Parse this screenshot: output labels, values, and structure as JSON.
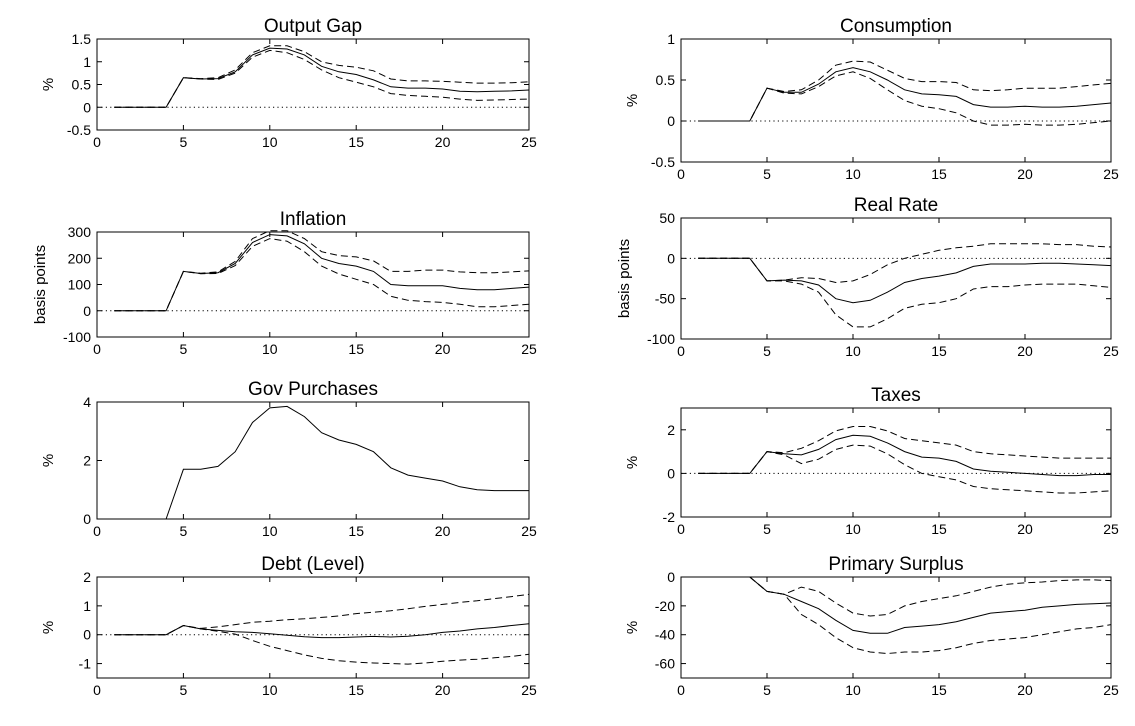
{
  "chart_data": [
    {
      "type": "line",
      "title": "Output Gap",
      "ylabel": "%",
      "xlim": [
        0,
        25
      ],
      "ylim": [
        -0.5,
        1.5
      ],
      "xticks": [
        0,
        5,
        10,
        15,
        20,
        25
      ],
      "yticks": [
        -0.5,
        0,
        0.5,
        1,
        1.5
      ],
      "x": [
        1,
        2,
        3,
        4,
        5,
        6,
        7,
        8,
        9,
        10,
        11,
        12,
        13,
        14,
        15,
        16,
        17,
        18,
        19,
        20,
        21,
        22,
        23,
        24,
        25
      ],
      "series": [
        {
          "style": "solid",
          "values": [
            0,
            0,
            0,
            0,
            0.65,
            0.62,
            0.63,
            0.78,
            1.15,
            1.3,
            1.28,
            1.15,
            0.9,
            0.78,
            0.72,
            0.6,
            0.45,
            0.42,
            0.42,
            0.4,
            0.35,
            0.34,
            0.35,
            0.36,
            0.38
          ]
        },
        {
          "style": "dashed",
          "values": [
            0,
            0,
            0,
            0,
            0.65,
            0.63,
            0.65,
            0.82,
            1.2,
            1.35,
            1.35,
            1.22,
            1.0,
            0.92,
            0.88,
            0.8,
            0.62,
            0.58,
            0.58,
            0.57,
            0.55,
            0.53,
            0.53,
            0.54,
            0.56
          ]
        },
        {
          "style": "dashed",
          "values": [
            0,
            0,
            0,
            0,
            0.65,
            0.62,
            0.61,
            0.75,
            1.1,
            1.25,
            1.2,
            1.05,
            0.82,
            0.65,
            0.55,
            0.45,
            0.3,
            0.26,
            0.24,
            0.22,
            0.18,
            0.15,
            0.16,
            0.17,
            0.18
          ]
        }
      ]
    },
    {
      "type": "line",
      "title": "Consumption",
      "ylabel": "%",
      "xlim": [
        0,
        25
      ],
      "ylim": [
        -0.5,
        1
      ],
      "xticks": [
        0,
        5,
        10,
        15,
        20,
        25
      ],
      "yticks": [
        -0.5,
        0,
        0.5,
        1
      ],
      "x": [
        1,
        2,
        3,
        4,
        5,
        6,
        7,
        8,
        9,
        10,
        11,
        12,
        13,
        14,
        15,
        16,
        17,
        18,
        19,
        20,
        21,
        22,
        23,
        24,
        25
      ],
      "series": [
        {
          "style": "solid",
          "values": [
            0,
            0,
            0,
            0,
            0.4,
            0.35,
            0.35,
            0.45,
            0.6,
            0.65,
            0.6,
            0.5,
            0.38,
            0.33,
            0.32,
            0.3,
            0.2,
            0.17,
            0.17,
            0.18,
            0.17,
            0.17,
            0.18,
            0.2,
            0.22
          ]
        },
        {
          "style": "dashed",
          "values": [
            0,
            0,
            0,
            0,
            0.4,
            0.36,
            0.38,
            0.5,
            0.68,
            0.73,
            0.72,
            0.62,
            0.52,
            0.48,
            0.48,
            0.47,
            0.38,
            0.37,
            0.38,
            0.4,
            0.4,
            0.4,
            0.42,
            0.44,
            0.46
          ]
        },
        {
          "style": "dashed",
          "values": [
            0,
            0,
            0,
            0,
            0.4,
            0.34,
            0.33,
            0.42,
            0.55,
            0.6,
            0.52,
            0.38,
            0.25,
            0.18,
            0.15,
            0.1,
            0.0,
            -0.05,
            -0.05,
            -0.04,
            -0.05,
            -0.05,
            -0.04,
            -0.02,
            0.0
          ]
        }
      ]
    },
    {
      "type": "line",
      "title": "Inflation",
      "ylabel": "basis points",
      "xlim": [
        0,
        25
      ],
      "ylim": [
        -100,
        300
      ],
      "xticks": [
        0,
        5,
        10,
        15,
        20,
        25
      ],
      "yticks": [
        -100,
        0,
        100,
        200,
        300
      ],
      "x": [
        1,
        2,
        3,
        4,
        5,
        6,
        7,
        8,
        9,
        10,
        11,
        12,
        13,
        14,
        15,
        16,
        17,
        18,
        19,
        20,
        21,
        22,
        23,
        24,
        25
      ],
      "series": [
        {
          "style": "solid",
          "values": [
            0,
            0,
            0,
            0,
            150,
            142,
            145,
            180,
            260,
            290,
            285,
            255,
            200,
            180,
            170,
            150,
            100,
            95,
            95,
            95,
            85,
            80,
            80,
            85,
            90
          ]
        },
        {
          "style": "dashed",
          "values": [
            0,
            0,
            0,
            0,
            150,
            143,
            148,
            188,
            275,
            305,
            305,
            275,
            225,
            210,
            205,
            190,
            150,
            150,
            155,
            155,
            148,
            145,
            145,
            148,
            152
          ]
        },
        {
          "style": "dashed",
          "values": [
            0,
            0,
            0,
            0,
            150,
            141,
            142,
            172,
            245,
            275,
            265,
            225,
            170,
            140,
            120,
            100,
            55,
            40,
            35,
            32,
            25,
            15,
            15,
            20,
            25
          ]
        }
      ]
    },
    {
      "type": "line",
      "title": "Real Rate",
      "ylabel": "basis points",
      "xlim": [
        0,
        25
      ],
      "ylim": [
        -100,
        50
      ],
      "xticks": [
        0,
        5,
        10,
        15,
        20,
        25
      ],
      "yticks": [
        -100,
        -50,
        0,
        50
      ],
      "x": [
        1,
        2,
        3,
        4,
        5,
        6,
        7,
        8,
        9,
        10,
        11,
        12,
        13,
        14,
        15,
        16,
        17,
        18,
        19,
        20,
        21,
        22,
        23,
        24,
        25
      ],
      "series": [
        {
          "style": "solid",
          "values": [
            0,
            0,
            0,
            0,
            -28,
            -27,
            -28,
            -33,
            -50,
            -55,
            -52,
            -42,
            -30,
            -25,
            -22,
            -18,
            -10,
            -7,
            -7,
            -7,
            -6,
            -6,
            -7,
            -8,
            -9
          ]
        },
        {
          "style": "dashed",
          "values": [
            0,
            0,
            0,
            0,
            -28,
            -27,
            -24,
            -25,
            -30,
            -28,
            -20,
            -8,
            0,
            5,
            10,
            13,
            15,
            18,
            18,
            18,
            18,
            17,
            17,
            15,
            14
          ]
        },
        {
          "style": "dashed",
          "values": [
            0,
            0,
            0,
            0,
            -28,
            -28,
            -32,
            -42,
            -70,
            -85,
            -85,
            -75,
            -62,
            -57,
            -55,
            -50,
            -38,
            -35,
            -35,
            -33,
            -32,
            -32,
            -32,
            -34,
            -36
          ]
        }
      ]
    },
    {
      "type": "line",
      "title": "Gov Purchases",
      "ylabel": "%",
      "xlim": [
        0,
        25
      ],
      "ylim": [
        0,
        4
      ],
      "xticks": [
        0,
        5,
        10,
        15,
        20,
        25
      ],
      "yticks": [
        0,
        2,
        4
      ],
      "x": [
        1,
        2,
        3,
        4,
        5,
        6,
        7,
        8,
        9,
        10,
        11,
        12,
        13,
        14,
        15,
        16,
        17,
        18,
        19,
        20,
        21,
        22,
        23,
        24,
        25
      ],
      "series": [
        {
          "style": "solid",
          "values": [
            0,
            0,
            0,
            0,
            1.7,
            1.7,
            1.8,
            2.3,
            3.3,
            3.8,
            3.85,
            3.5,
            2.95,
            2.7,
            2.55,
            2.3,
            1.75,
            1.5,
            1.4,
            1.3,
            1.1,
            1.0,
            0.97,
            0.97,
            0.97
          ]
        }
      ]
    },
    {
      "type": "line",
      "title": "Taxes",
      "ylabel": "%",
      "xlim": [
        0,
        25
      ],
      "ylim": [
        -2,
        3
      ],
      "xticks": [
        0,
        5,
        10,
        15,
        20,
        25
      ],
      "yticks": [
        -2,
        0,
        2
      ],
      "x": [
        1,
        2,
        3,
        4,
        5,
        6,
        7,
        8,
        9,
        10,
        11,
        12,
        13,
        14,
        15,
        16,
        17,
        18,
        19,
        20,
        21,
        22,
        23,
        24,
        25
      ],
      "series": [
        {
          "style": "solid",
          "values": [
            0,
            0,
            0,
            0,
            1.0,
            0.9,
            0.85,
            1.1,
            1.55,
            1.75,
            1.7,
            1.4,
            1.0,
            0.75,
            0.7,
            0.55,
            0.2,
            0.1,
            0.05,
            0.0,
            -0.05,
            -0.1,
            -0.1,
            -0.05,
            -0.05
          ]
        },
        {
          "style": "dashed",
          "values": [
            0,
            0,
            0,
            0,
            1.0,
            0.95,
            1.15,
            1.5,
            1.95,
            2.15,
            2.15,
            1.95,
            1.6,
            1.5,
            1.4,
            1.3,
            1.0,
            0.9,
            0.85,
            0.8,
            0.75,
            0.7,
            0.7,
            0.7,
            0.7
          ]
        },
        {
          "style": "dashed",
          "values": [
            0,
            0,
            0,
            0,
            1.0,
            0.85,
            0.45,
            0.65,
            1.1,
            1.3,
            1.25,
            0.9,
            0.4,
            0.0,
            -0.15,
            -0.3,
            -0.6,
            -0.7,
            -0.75,
            -0.8,
            -0.85,
            -0.9,
            -0.9,
            -0.85,
            -0.8
          ]
        }
      ]
    },
    {
      "type": "line",
      "title": "Debt (Level)",
      "ylabel": "%",
      "xlim": [
        0,
        25
      ],
      "ylim": [
        -1.5,
        2
      ],
      "xticks": [
        0,
        5,
        10,
        15,
        20,
        25
      ],
      "yticks": [
        -1,
        0,
        1,
        2
      ],
      "x": [
        1,
        2,
        3,
        4,
        5,
        6,
        7,
        8,
        9,
        10,
        11,
        12,
        13,
        14,
        15,
        16,
        17,
        18,
        19,
        20,
        21,
        22,
        23,
        24,
        25
      ],
      "series": [
        {
          "style": "solid",
          "values": [
            0,
            0,
            0,
            0,
            0.32,
            0.2,
            0.15,
            0.1,
            0.08,
            0.03,
            -0.02,
            -0.07,
            -0.1,
            -0.1,
            -0.08,
            -0.06,
            -0.08,
            -0.05,
            0.0,
            0.08,
            0.13,
            0.2,
            0.25,
            0.32,
            0.38
          ]
        },
        {
          "style": "dashed",
          "values": [
            0,
            0,
            0,
            0,
            0.32,
            0.22,
            0.27,
            0.35,
            0.43,
            0.47,
            0.52,
            0.55,
            0.6,
            0.65,
            0.73,
            0.78,
            0.83,
            0.9,
            0.98,
            1.05,
            1.12,
            1.18,
            1.25,
            1.32,
            1.4
          ]
        },
        {
          "style": "dashed",
          "values": [
            0,
            0,
            0,
            0,
            0.32,
            0.2,
            0.12,
            0.02,
            -0.2,
            -0.4,
            -0.55,
            -0.7,
            -0.82,
            -0.9,
            -0.95,
            -0.98,
            -1.0,
            -1.02,
            -0.98,
            -0.92,
            -0.88,
            -0.85,
            -0.8,
            -0.75,
            -0.68
          ]
        }
      ]
    },
    {
      "type": "line",
      "title": "Primary Surplus",
      "ylabel": "%",
      "xlim": [
        0,
        25
      ],
      "ylim": [
        -70,
        0
      ],
      "xticks": [
        0,
        5,
        10,
        15,
        20,
        25
      ],
      "yticks": [
        -60,
        -40,
        -20,
        0
      ],
      "x": [
        4,
        5,
        6,
        7,
        8,
        9,
        10,
        11,
        12,
        13,
        14,
        15,
        16,
        17,
        18,
        19,
        20,
        21,
        22,
        23,
        24,
        25
      ],
      "series": [
        {
          "style": "solid",
          "values": [
            0,
            -10,
            -12,
            -17,
            -22,
            -30,
            -37,
            -39,
            -39,
            -35,
            -34,
            -33,
            -31,
            -28,
            -25,
            -24,
            -23,
            -21,
            -20,
            -19,
            -18.5,
            -18
          ]
        },
        {
          "style": "dashed",
          "values": [
            0,
            -10,
            -12,
            -7,
            -10,
            -18,
            -25,
            -27,
            -26,
            -20,
            -17,
            -15,
            -13,
            -10,
            -7,
            -5,
            -4,
            -3.5,
            -2.5,
            -2,
            -2,
            -2.5
          ]
        },
        {
          "style": "dashed",
          "values": [
            0,
            -10,
            -12,
            -26,
            -33,
            -42,
            -49,
            -52,
            -53,
            -52,
            -52,
            -51,
            -49,
            -46,
            -44,
            -43,
            -42,
            -40,
            -38,
            -36,
            -35,
            -33
          ]
        }
      ]
    }
  ]
}
